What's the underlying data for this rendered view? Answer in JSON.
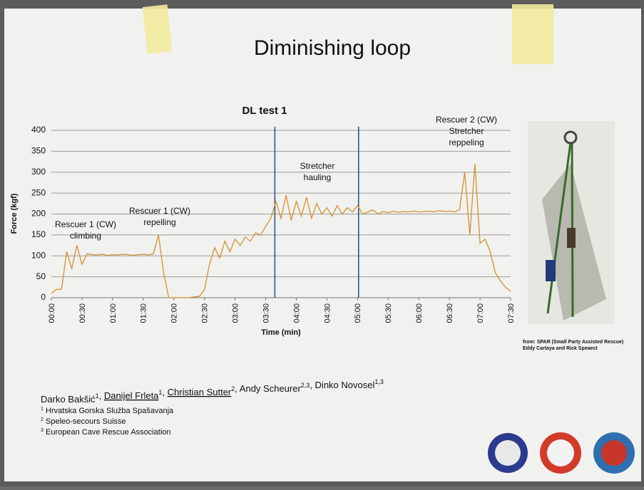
{
  "header": {
    "title": "Diminishing loop"
  },
  "chart_data": {
    "type": "line",
    "title": "DL test 1",
    "x_label": "Time (min)",
    "y_label": "Force (kgf)",
    "color": "#d4922e",
    "x": [
      0,
      5,
      10,
      15,
      20,
      25,
      30,
      35,
      40,
      45,
      50,
      55,
      60,
      65,
      70,
      75,
      80,
      85,
      90,
      95,
      100,
      105,
      110,
      115,
      120,
      125,
      130,
      135,
      140,
      145,
      150,
      155,
      160,
      165,
      170,
      175,
      180,
      185,
      190,
      195,
      200,
      205,
      210,
      215,
      220,
      225,
      230,
      235,
      240,
      245,
      250,
      255,
      260,
      265,
      270,
      275,
      280,
      285,
      290,
      295,
      300,
      305,
      310,
      315,
      320,
      325,
      330,
      335,
      340,
      345,
      350,
      355,
      360,
      365,
      370,
      375,
      380,
      385,
      390,
      395,
      400,
      405,
      410,
      415,
      420,
      425,
      430,
      435,
      440,
      445,
      450
    ],
    "values": [
      10,
      20,
      20,
      110,
      70,
      125,
      80,
      105,
      103,
      102,
      104,
      101,
      103,
      102,
      104,
      103,
      101,
      103,
      104,
      102,
      105,
      150,
      60,
      0,
      0,
      0,
      0,
      0,
      2,
      3,
      20,
      80,
      120,
      95,
      135,
      110,
      140,
      125,
      145,
      135,
      155,
      150,
      170,
      190,
      230,
      190,
      245,
      185,
      230,
      195,
      240,
      190,
      225,
      200,
      215,
      195,
      220,
      200,
      215,
      205,
      220,
      200,
      205,
      210,
      200,
      206,
      203,
      207,
      204,
      206,
      205,
      207,
      205,
      206,
      207,
      205,
      208,
      206,
      207,
      205,
      210,
      300,
      150,
      320,
      130,
      140,
      110,
      60,
      40,
      25,
      15
    ],
    "xlim": [
      0,
      450
    ],
    "xticks": [
      {
        "value": 0,
        "label": "00:00"
      },
      {
        "value": 30,
        "label": "00:30"
      },
      {
        "value": 60,
        "label": "01:00"
      },
      {
        "value": 90,
        "label": "01:30"
      },
      {
        "value": 120,
        "label": "02:00"
      },
      {
        "value": 150,
        "label": "02:30"
      },
      {
        "value": 180,
        "label": "03:00"
      },
      {
        "value": 210,
        "label": "03:30"
      },
      {
        "value": 240,
        "label": "04:00"
      },
      {
        "value": 270,
        "label": "04:30"
      },
      {
        "value": 300,
        "label": "05:00"
      },
      {
        "value": 330,
        "label": "05:30"
      },
      {
        "value": 360,
        "label": "06:00"
      },
      {
        "value": 390,
        "label": "06:30"
      },
      {
        "value": 420,
        "label": "07:00"
      },
      {
        "value": 450,
        "label": "07:30"
      }
    ],
    "ylim": [
      0,
      400
    ],
    "yticks": [
      0,
      50,
      100,
      150,
      200,
      250,
      300,
      350,
      400
    ],
    "grid": true,
    "vlines": [
      219,
      301
    ],
    "annotations": [
      [
        "Rescuer 1 (CW)",
        "climbing"
      ],
      [
        "Rescuer 1 (CW)",
        "repelling"
      ],
      [
        "Stretcher",
        "hauling"
      ],
      [
        "Rescuer 2 (CW)",
        "Stretcher",
        "reppeling"
      ]
    ]
  },
  "credit": [
    "from: SPAR (Small Party Assisted Rescue)",
    "Eddy Cartaya and Rick Speaect"
  ],
  "authors": [
    {
      "name": "Darko Bakšić",
      "sup": "1"
    },
    {
      "name": "Danijel Frleta",
      "sup": "1"
    },
    {
      "name": "Christian Sutter",
      "sup": "2"
    },
    {
      "name": "Andy Scheurer",
      "sup": "2,3"
    },
    {
      "name": "Dinko Novosel",
      "sup": "1,3"
    }
  ],
  "affiliations": [
    {
      "sup": "1",
      "text": "Hrvatska Gorska Služba Spašavanja"
    },
    {
      "sup": "2",
      "text": "Speleo-secours Suisse"
    },
    {
      "sup": "3",
      "text": "European Cave Rescue Association"
    }
  ]
}
